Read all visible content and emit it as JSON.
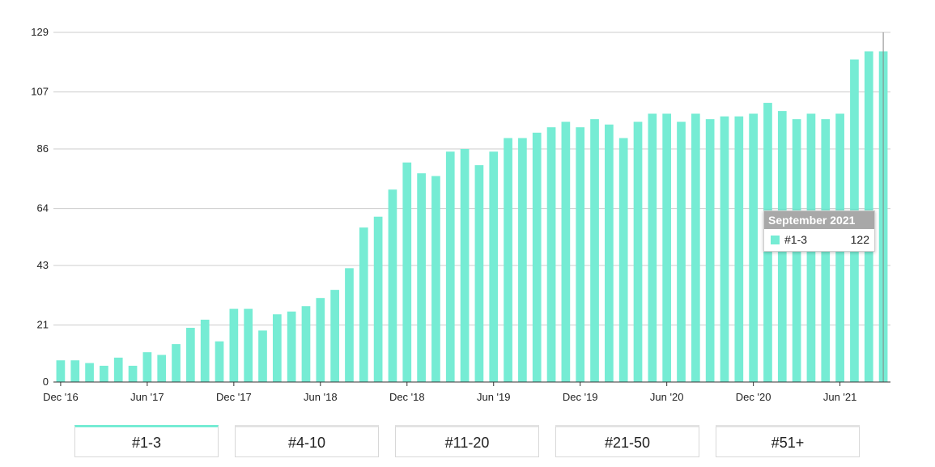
{
  "colors": {
    "bar": "#76ecd4",
    "grid": "#cccccc",
    "axis": "#333333",
    "active_tab": "#76ecd4"
  },
  "chart_data": {
    "type": "bar",
    "series_name": "#1-3",
    "start_month": "Dec '16",
    "end_month": "Sep '21",
    "values": [
      8,
      8,
      7,
      6,
      9,
      6,
      11,
      10,
      14,
      20,
      23,
      15,
      27,
      27,
      19,
      25,
      26,
      28,
      31,
      34,
      42,
      57,
      61,
      71,
      81,
      77,
      76,
      85,
      86,
      80,
      85,
      90,
      90,
      92,
      94,
      96,
      94,
      97,
      95,
      90,
      96,
      99,
      99,
      96,
      99,
      97,
      98,
      98,
      99,
      103,
      100,
      97,
      99,
      97,
      99,
      119,
      122,
      122
    ],
    "yticks": [
      0,
      21,
      43,
      64,
      86,
      107,
      129
    ],
    "ylim": [
      0,
      129
    ],
    "xtick_labels": [
      {
        "label": "Dec '16",
        "index": 0
      },
      {
        "label": "Jun '17",
        "index": 6
      },
      {
        "label": "Dec '17",
        "index": 12
      },
      {
        "label": "Jun '18",
        "index": 18
      },
      {
        "label": "Dec '18",
        "index": 24
      },
      {
        "label": "Jun '19",
        "index": 30
      },
      {
        "label": "Dec '19",
        "index": 36
      },
      {
        "label": "Jun '20",
        "index": 42
      },
      {
        "label": "Dec '20",
        "index": 48
      },
      {
        "label": "Jun '21",
        "index": 54
      }
    ],
    "grid": true,
    "legend": "none"
  },
  "tooltip": {
    "title": "September 2021",
    "series": "#1-3",
    "value": "122"
  },
  "tabs": [
    {
      "label": "#1-3",
      "active": true
    },
    {
      "label": "#4-10",
      "active": false
    },
    {
      "label": "#11-20",
      "active": false
    },
    {
      "label": "#21-50",
      "active": false
    },
    {
      "label": "#51+",
      "active": false
    }
  ]
}
